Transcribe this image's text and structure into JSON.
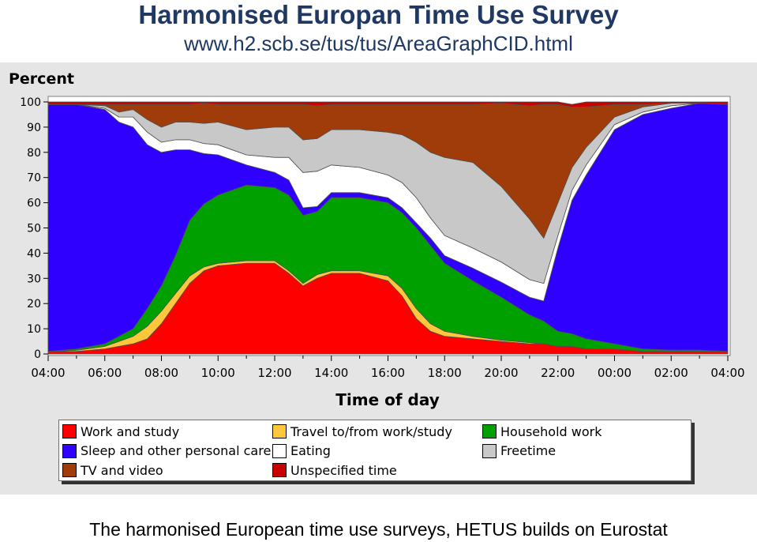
{
  "header": {
    "title": "Harmonised Europan Time Use Survey",
    "url": "www.h2.scb.se/tus/tus/AreaGraphCID.html"
  },
  "caption": "The harmonised European time use surveys, HETUS builds on Eurostat",
  "chart_data": {
    "type": "area",
    "stacked": true,
    "title": "",
    "xlabel": "Time of day",
    "ylabel": "Percent",
    "ylim": [
      0,
      100
    ],
    "yticks": [
      0,
      10,
      20,
      30,
      40,
      50,
      60,
      70,
      80,
      90,
      100
    ],
    "xtick_labels": [
      "04:00",
      "06:00",
      "08:00",
      "10:00",
      "12:00",
      "14:00",
      "16:00",
      "18:00",
      "20:00",
      "22:00",
      "00:00",
      "02:00",
      "04:00"
    ],
    "x": [
      "04:00",
      "05:00",
      "06:00",
      "06:30",
      "07:00",
      "07:30",
      "08:00",
      "08:30",
      "09:00",
      "09:30",
      "10:00",
      "11:00",
      "12:00",
      "12:30",
      "13:00",
      "13:30",
      "14:00",
      "15:00",
      "16:00",
      "16:30",
      "17:00",
      "17:30",
      "18:00",
      "19:00",
      "20:00",
      "21:00",
      "21:30",
      "22:00",
      "22:30",
      "23:00",
      "00:00",
      "01:00",
      "02:00",
      "03:00",
      "04:00"
    ],
    "series": [
      {
        "name": "Work and study",
        "color": "#ff0000",
        "values": [
          1,
          1,
          2,
          3,
          4,
          6,
          12,
          20,
          28,
          33,
          35,
          36,
          36,
          32,
          27,
          30,
          32,
          32,
          29,
          23,
          14,
          9,
          7,
          6,
          5,
          4,
          4,
          3,
          3,
          2,
          2,
          1,
          1,
          1,
          1
        ]
      },
      {
        "name": "Travel to/from work/study",
        "color": "#ffc83c",
        "values": [
          0,
          0.5,
          1,
          2,
          3,
          5,
          5,
          4,
          3,
          1.5,
          1,
          1,
          1,
          1,
          1,
          1.5,
          1,
          1,
          2,
          3,
          4,
          3,
          2,
          1,
          0.5,
          0.5,
          0,
          0,
          0,
          0,
          0,
          0,
          0,
          0,
          0
        ]
      },
      {
        "name": "Household work",
        "color": "#00a000",
        "values": [
          0,
          0.5,
          1,
          2,
          3,
          7,
          10,
          15,
          22,
          25,
          27,
          30,
          29,
          30,
          27,
          25,
          29,
          29,
          29,
          30,
          32,
          31,
          27,
          22,
          17,
          11,
          9,
          6,
          5,
          4,
          2,
          1,
          0.5,
          0.5,
          0
        ]
      },
      {
        "name": "Sleep and other personal care",
        "color": "#3000ff",
        "values": [
          98,
          97,
          93,
          85,
          80,
          65,
          53,
          42,
          28,
          20,
          16,
          8,
          6,
          6,
          3,
          2,
          2,
          2,
          2,
          2,
          2,
          3,
          3,
          5,
          6,
          7,
          8,
          33,
          53,
          65,
          85,
          93,
          96,
          98,
          98
        ]
      },
      {
        "name": "Eating",
        "color": "#ffffff",
        "values": [
          0,
          0,
          0.5,
          2,
          4,
          5,
          4,
          4,
          4,
          4,
          4,
          4,
          6,
          9,
          14,
          14,
          11,
          10,
          9,
          10,
          10,
          8,
          8,
          8,
          8,
          7,
          7,
          5,
          4,
          4,
          2,
          1,
          1,
          0,
          0
        ]
      },
      {
        "name": "Freetime",
        "color": "#c8c8c8",
        "values": [
          0,
          0,
          1,
          2,
          3,
          5,
          6,
          7,
          7,
          8,
          9,
          10,
          12,
          12,
          13,
          13,
          14,
          15,
          17,
          19,
          22,
          26,
          31,
          34,
          30,
          24,
          18,
          13,
          9,
          7,
          3,
          2,
          1,
          0,
          0
        ]
      },
      {
        "name": "TV and video",
        "color": "#a03c0a",
        "values": [
          0,
          0,
          0.5,
          3,
          2,
          6,
          9,
          7,
          7,
          8,
          7,
          10,
          9,
          9,
          14,
          13,
          10,
          10,
          11,
          12,
          15,
          19,
          21,
          23,
          33,
          45,
          53,
          39,
          24,
          16,
          5,
          1,
          0,
          0,
          0
        ]
      },
      {
        "name": "Unspecified time",
        "color": "#c80000",
        "values": [
          1,
          1,
          1,
          1,
          1,
          1,
          1,
          1,
          1,
          0.5,
          1,
          1,
          1,
          1,
          1,
          1.5,
          1,
          1,
          1,
          1,
          1,
          1,
          1,
          1,
          0.5,
          1.5,
          1,
          1,
          1,
          2,
          1,
          1,
          0.5,
          0.5,
          1
        ]
      }
    ],
    "legend": {
      "placement": "bottom",
      "columns": [
        [
          "Work and study",
          "Sleep and other personal care",
          "TV and video"
        ],
        [
          "Travel to/from work/study",
          "Eating",
          "Unspecified time"
        ],
        [
          "Household work",
          "Freetime"
        ]
      ]
    },
    "grid": false
  }
}
